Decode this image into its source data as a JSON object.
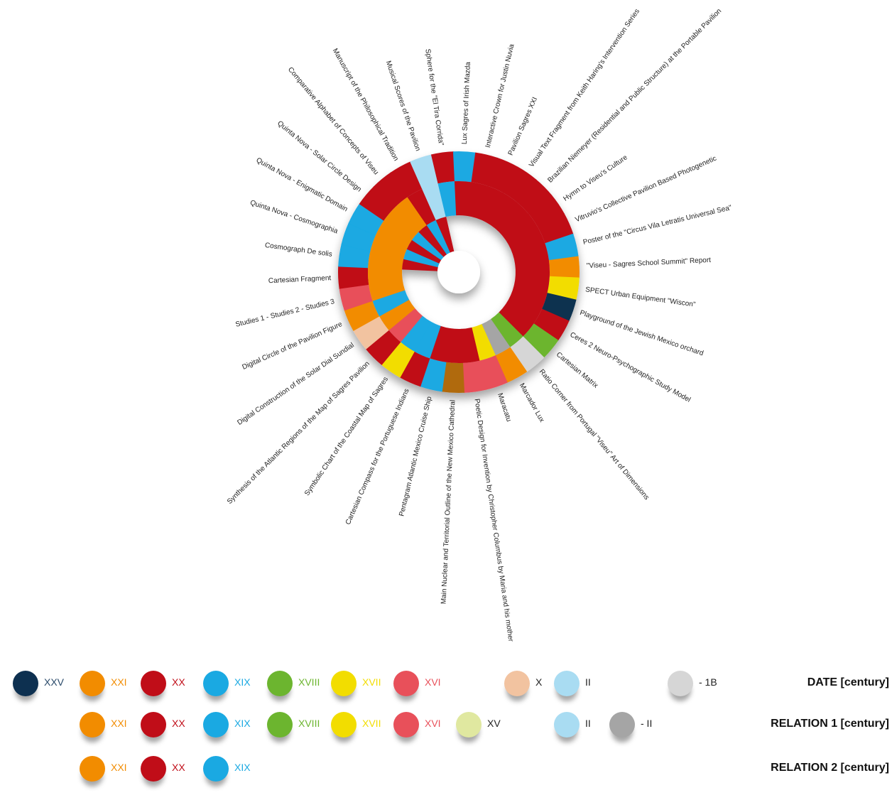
{
  "chart_data": {
    "type": "radial-bar",
    "palette": {
      "XXV": "#0d3050",
      "XXI": "#f28c00",
      "XX": "#c00d18",
      "XIX": "#1aa9e2",
      "XVIII": "#6cb52f",
      "XVII": "#f2dd00",
      "XVI": "#e8505a",
      "XV": "#e0e8a0",
      "X": "#f2c3a0",
      "II": "#a9dcf2",
      "-II": "#a5a5a5",
      "-1B": "#d6d6d6",
      "brown": "#b06a10"
    },
    "items": [
      {
        "label": "\"Viseu - Sagres School Summit\" Report",
        "date": "XXI",
        "rel1": "XX",
        "rel2": ""
      },
      {
        "label": "SPECT Urban Equipment \"Wiscon\"",
        "date": "XVII",
        "rel1": "XX",
        "rel2": ""
      },
      {
        "label": "Playground of the Jewish Mexico orchard",
        "date": "XXV",
        "rel1": "XX",
        "rel2": ""
      },
      {
        "label": "Ceres 2 Neuro-Psychographic Study Model",
        "date": "XX",
        "rel1": "XX",
        "rel2": ""
      },
      {
        "label": "Cartesian Matrix",
        "date": "XVIII",
        "rel1": "XX",
        "rel2": ""
      },
      {
        "label": "Ratio Corner from Portugal \"Viseu\" Art of Dimensions",
        "date": "-1B",
        "rel1": "XVIII",
        "rel2": ""
      },
      {
        "label": "Marcador Lux",
        "date": "XXI",
        "rel1": "-II",
        "rel2": ""
      },
      {
        "label": "Maracatu",
        "date": "XVI",
        "rel1": "XVII",
        "rel2": ""
      },
      {
        "label": "Poetic Design for Invention by Christopher Columbus by Maria and his mother",
        "date": "XVI",
        "rel1": "XX",
        "rel2": ""
      },
      {
        "label": "Main Nuclear and Territorial Outline of the New Mexico Cathedral",
        "date": "brown",
        "rel1": "XX",
        "rel2": ""
      },
      {
        "label": "Pentagram Atlantic Mexico Cruise Ship",
        "date": "XIX",
        "rel1": "XX",
        "rel2": ""
      },
      {
        "label": "Cartesian Compass for the Portuguese Indians",
        "date": "XX",
        "rel1": "XIX",
        "rel2": ""
      },
      {
        "label": "Symbolic Chart of the Coastal Map of Sagres",
        "date": "XVII",
        "rel1": "XIX",
        "rel2": ""
      },
      {
        "label": "Synthesis of the Atlantic Regions of the Map of Sagres Pavilion",
        "date": "XX",
        "rel1": "XVI",
        "rel2": ""
      },
      {
        "label": "Digital Construction of the Solar Dial Sundial",
        "date": "X",
        "rel1": "XXI",
        "rel2": ""
      },
      {
        "label": "Digital Circle of the Pavilion Figure",
        "date": "XXI",
        "rel1": "XIX",
        "rel2": ""
      },
      {
        "label": "Studies 1 - Studies 2 - Studies 3",
        "date": "XVI",
        "rel1": "XXI",
        "rel2": ""
      },
      {
        "label": "Cartesian Fragment",
        "date": "XX",
        "rel1": "XXI",
        "rel2": ""
      },
      {
        "label": "Cosmograph De solis",
        "date": "XIX",
        "rel1": "XXI",
        "rel2": "XX"
      },
      {
        "label": "Quinta Nova - Cosmographia",
        "date": "XIX",
        "rel1": "XXI",
        "rel2": "XIX"
      },
      {
        "label": "Quinta Nova - Enigmatic Domain",
        "date": "XIX",
        "rel1": "XXI",
        "rel2": "XX"
      },
      {
        "label": "Quinta Nova - Solar Circle Design",
        "date": "XX",
        "rel1": "XXI",
        "rel2": "XIX"
      },
      {
        "label": "Comparative Alphabet of Concepts of Viseu",
        "date": "XX",
        "rel1": "XXI",
        "rel2": "XX"
      },
      {
        "label": "Manuscript of the Philosophical Tradition",
        "date": "XX",
        "rel1": "XX",
        "rel2": "XIX"
      },
      {
        "label": "Musical Scores of the Pavilion",
        "date": "II",
        "rel1": "II",
        "rel2": "XX"
      },
      {
        "label": "Sphere for the \"El Tira Corrida\"",
        "date": "XX",
        "rel1": "XIX",
        "rel2": ""
      },
      {
        "label": "Lux Sagres of Irish Mazda",
        "date": "XIX",
        "rel1": "XX",
        "rel2": ""
      },
      {
        "label": "Interactive Crown for Justin Nuvia",
        "date": "XX",
        "rel1": "XX",
        "rel2": ""
      },
      {
        "label": "Pavilion Sagres XXI",
        "date": "XX",
        "rel1": "XX",
        "rel2": ""
      },
      {
        "label": "Visual Text Fragment from Keith Haring's Intervention Series",
        "date": "XX",
        "rel1": "XX",
        "rel2": ""
      },
      {
        "label": "Brazilian Niemeyer (Residential and Public Structure) at the Portable Pavilion",
        "date": "XX",
        "rel1": "XX",
        "rel2": ""
      },
      {
        "label": "Hymn to Viseu's Culture",
        "date": "XX",
        "rel1": "XX",
        "rel2": ""
      },
      {
        "label": "Vitruvio's Collective Pavilion Based Photogenetic",
        "date": "XX",
        "rel1": "XX",
        "rel2": ""
      },
      {
        "label": "Poster of the \"Circus Vila Letratis Universal Sea\"",
        "date": "XIX",
        "rel1": "XX",
        "rel2": ""
      }
    ]
  },
  "legend": {
    "rows": [
      {
        "title": "DATE [century]",
        "entries": [
          {
            "label": "XXV",
            "key": "XXV"
          },
          {
            "label": "XXI",
            "key": "XXI"
          },
          {
            "label": "XX",
            "key": "XX"
          },
          {
            "label": "XIX",
            "key": "XIX"
          },
          {
            "label": "XVIII",
            "key": "XVIII"
          },
          {
            "label": "XVII",
            "key": "XVII"
          },
          {
            "label": "XVI",
            "key": "XVI"
          },
          {
            "label": "X",
            "key": "X"
          },
          {
            "label": "II",
            "key": "II"
          },
          {
            "label": "- 1B",
            "key": "-1B"
          }
        ]
      },
      {
        "title": "RELATION 1 [century]",
        "entries": [
          {
            "label": "XXI",
            "key": "XXI"
          },
          {
            "label": "XX",
            "key": "XX"
          },
          {
            "label": "XIX",
            "key": "XIX"
          },
          {
            "label": "XVIII",
            "key": "XVIII"
          },
          {
            "label": "XVII",
            "key": "XVII"
          },
          {
            "label": "XVI",
            "key": "XVI"
          },
          {
            "label": "XV",
            "key": "XV"
          },
          {
            "label": "II",
            "key": "II"
          },
          {
            "label": "- II",
            "key": "-II"
          }
        ]
      },
      {
        "title": "RELATION 2 [century]",
        "entries": [
          {
            "label": "XXI",
            "key": "XXI"
          },
          {
            "label": "XX",
            "key": "XX"
          },
          {
            "label": "XIX",
            "key": "XIX"
          }
        ]
      }
    ]
  }
}
